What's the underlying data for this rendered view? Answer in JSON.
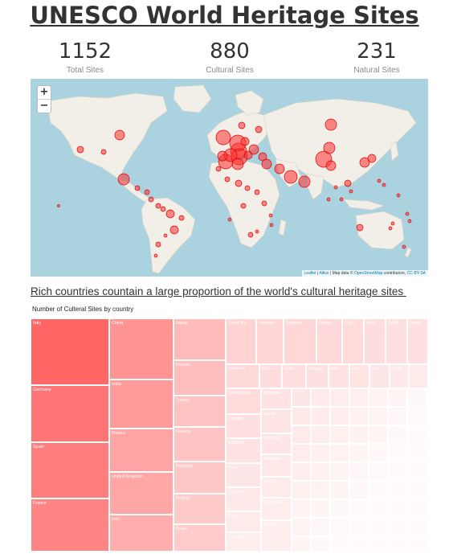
{
  "header": {
    "title": "UNESCO World Heritage Sites"
  },
  "kpis": [
    {
      "value": "1152",
      "label": "Total Sites"
    },
    {
      "value": "880",
      "label": "Cultural Sites"
    },
    {
      "value": "231",
      "label": "Natural Sites"
    }
  ],
  "map": {
    "zoom_in": "+",
    "zoom_out": "−",
    "attribution": {
      "leaflet": "Leaflet",
      "sep1": " | ",
      "altius": "Altius",
      "map_data": " | Map data © ",
      "osm": "OpenStreetMap",
      "contrib": " contributors, ",
      "license": "CC-BY-SA"
    },
    "colors": {
      "water": "#aad3df",
      "land": "#f2efe9",
      "marker_fill": "#ff3030",
      "marker_stroke": "#e00000"
    }
  },
  "subtitle": "Rich countries countain a large proportion of the world's cultural heritage sites ",
  "treemap": {
    "title": "Number of Culteral Sites by country",
    "labels": [
      "Italy",
      "Germany",
      "Spain",
      "France",
      "China",
      "India",
      "Mexico",
      "United Kingdom",
      "Iran",
      "Japan",
      "Russia",
      "Turkey",
      "Greece",
      "Portugal",
      "Poland",
      "Brazil",
      "South Ko...",
      "Sweden",
      "Belgium",
      "United ...",
      "Cze...",
      "Aus...",
      "Bolivi...",
      "Israel",
      "Morocco",
      "Peru",
      "Neth...",
      "Tunisia",
      "Ethi...",
      "Hun...",
      "Irel...",
      "Chile",
      "Netherlands",
      "Ukraine",
      "Croatia",
      "Egypt",
      "Ethiopia",
      "Armenia",
      "Pakistan",
      "Peru",
      "Norway",
      "Bulgaria",
      "Cuba",
      "Colombia",
      "Denmark",
      "Ukraine"
    ]
  }
}
